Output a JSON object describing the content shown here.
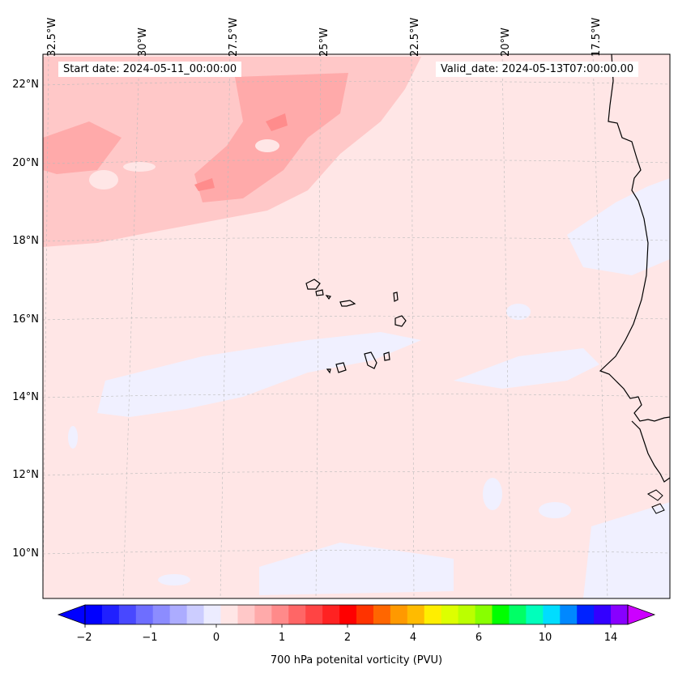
{
  "map": {
    "start_date": "Start date: 2024-05-11_00:00:00",
    "valid_date": "Valid_date: 2024-05-13T07:00:00.00",
    "lon_labels": [
      "32.5°W",
      "30°W",
      "27.5°W",
      "25°W",
      "22.5°W",
      "20°W",
      "17.5°W"
    ],
    "lat_labels": [
      "22°N",
      "20°N",
      "18°N",
      "16°N",
      "14°N",
      "12°N",
      "10°N"
    ],
    "field_colors": {
      "background": "#ffe6e6",
      "high_band": "#ffc8c8",
      "highest": "#ffa6a6",
      "peak": "#ff8080",
      "low": "#f0f0ff"
    }
  },
  "colorbar": {
    "title": "700 hPa potenital vorticity (PVU)",
    "tick_labels": [
      "−2",
      "−1",
      "0",
      "1",
      "2",
      "4",
      "6",
      "10",
      "14"
    ],
    "colors": [
      "#0000ff",
      "#2020ff",
      "#4848ff",
      "#6e6eff",
      "#8c8cff",
      "#acacff",
      "#cccdff",
      "#ececff",
      "#ffe6e6",
      "#ffc8c8",
      "#ffaaaa",
      "#ff8a8a",
      "#ff6666",
      "#ff4444",
      "#ff2222",
      "#ff0000",
      "#ff3300",
      "#ff6600",
      "#ff9900",
      "#ffbb00",
      "#ffee00",
      "#ddff00",
      "#bbff00",
      "#88ff00",
      "#00ff00",
      "#00ff66",
      "#00ffbb",
      "#00ddff",
      "#0088ff",
      "#0022ff",
      "#3300ff",
      "#8800ff"
    ],
    "extend_low_color": "#0000ff",
    "extend_high_color": "#cc00ff"
  }
}
